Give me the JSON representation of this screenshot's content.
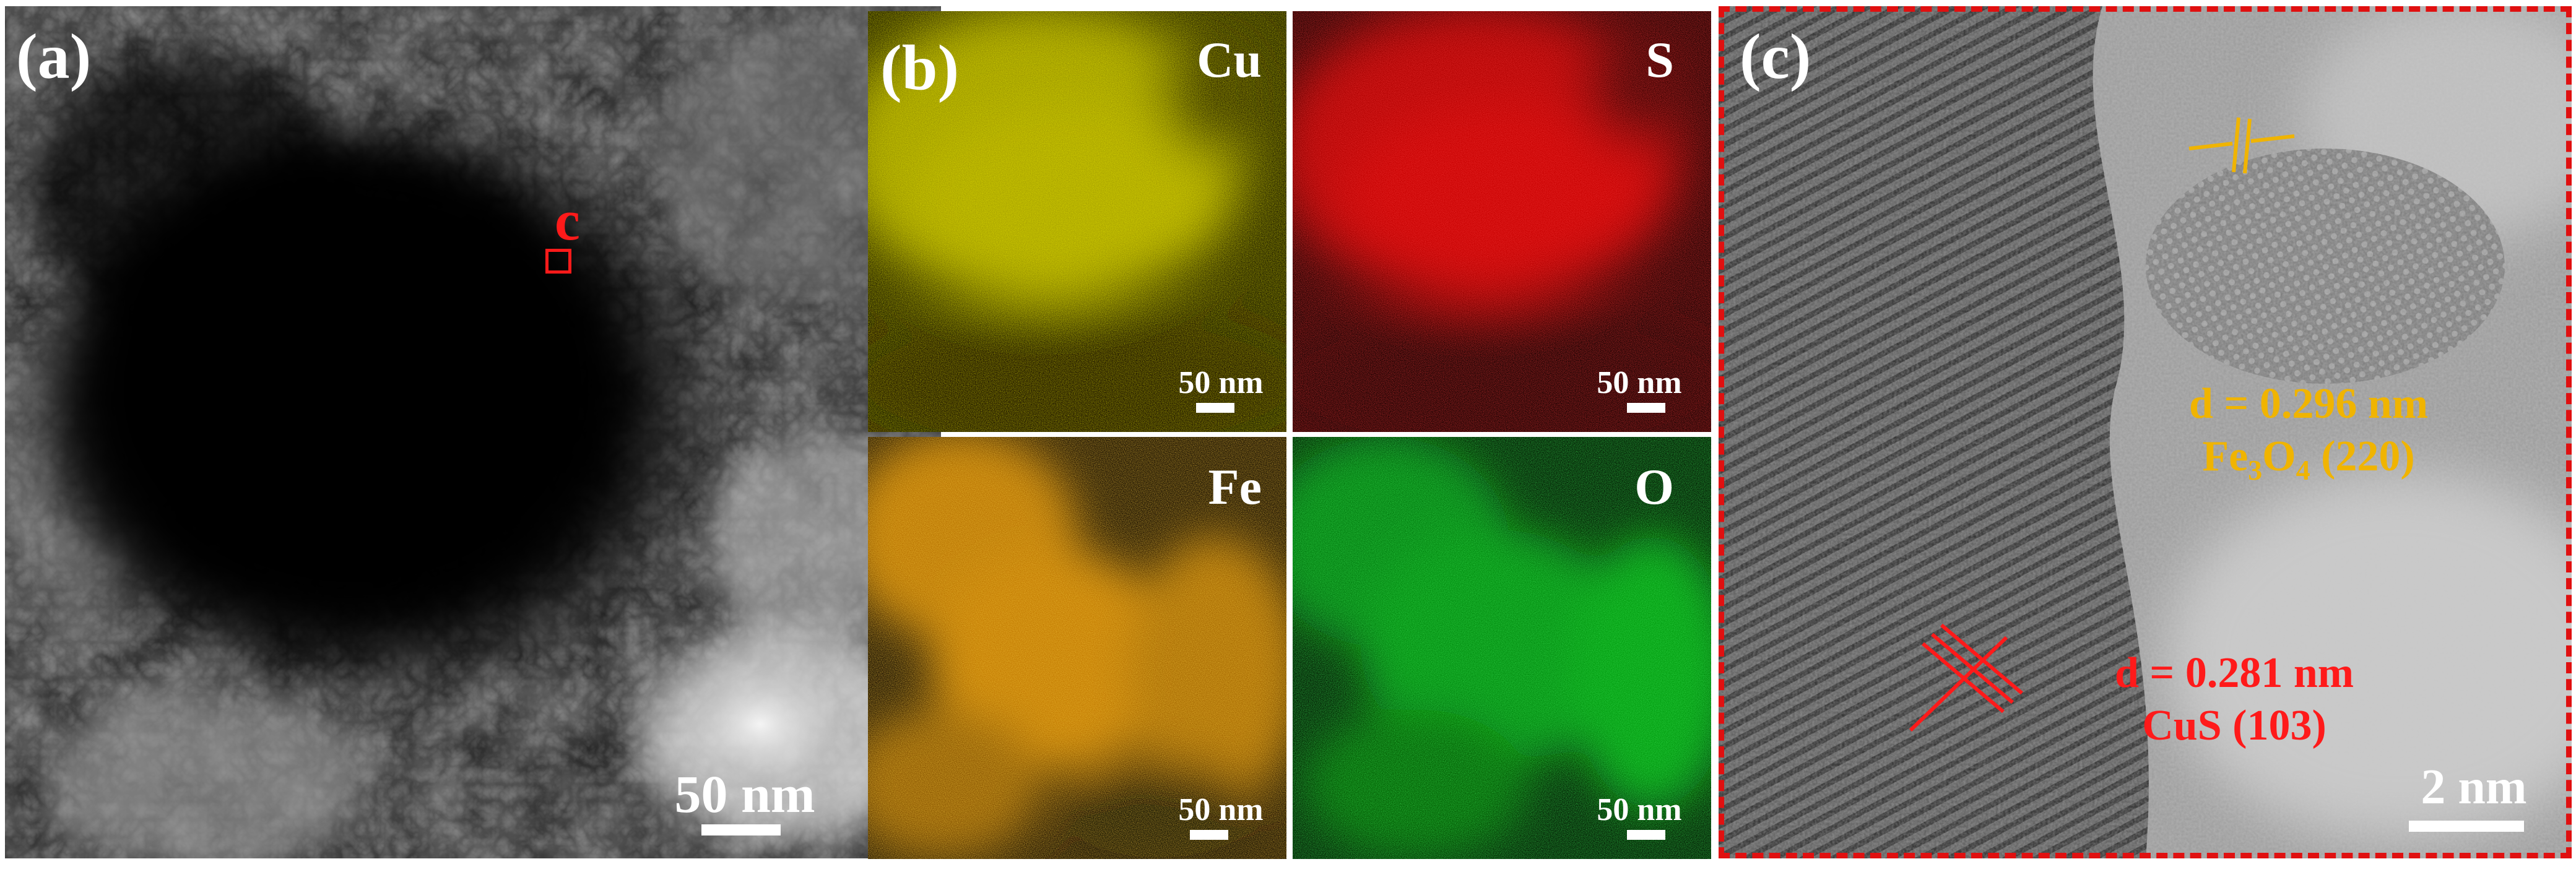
{
  "panels": {
    "a": {
      "label": "(a)",
      "marker": "c",
      "scale_bar": "50 nm"
    },
    "b": {
      "label": "(b)",
      "maps": [
        {
          "element": "Cu",
          "color": "#d4d000",
          "scale_bar": "50 nm"
        },
        {
          "element": "S",
          "color": "#e01010",
          "scale_bar": "50 nm"
        },
        {
          "element": "Fe",
          "color": "#e3920f",
          "scale_bar": "50 nm"
        },
        {
          "element": "O",
          "color": "#18c020",
          "scale_bar": "50 nm"
        }
      ]
    },
    "c": {
      "label": "(c)",
      "scale_bar": "2 nm",
      "fe3o4": {
        "d": "d = 0.296 nm",
        "phase_main": "Fe",
        "sub1": "3",
        "mid": "O",
        "sub2": "4",
        "plane": " (220)",
        "color": "#f0b400"
      },
      "cus": {
        "d": "d = 0.281 nm",
        "phase": "CuS (103)",
        "color": "#ff1a1a"
      },
      "border_color": "#e01010"
    }
  }
}
